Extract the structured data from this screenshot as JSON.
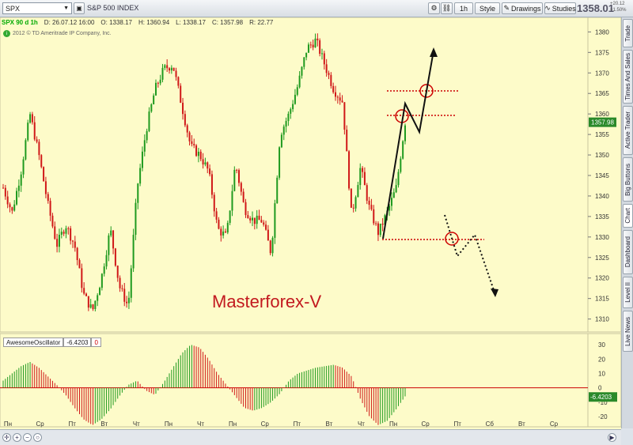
{
  "toolbar": {
    "symbol": "SPX",
    "symbol_name": "S&P 500 INDEX",
    "interval": "1h",
    "style_label": "Style",
    "drawings_label": "Drawings",
    "studies_label": "Studies",
    "last_price": "1358.01",
    "change_up": "+20.12",
    "change_pct": "+1.50%"
  },
  "infobar": {
    "symbol_tag": "SPX 90 d 1h",
    "date": "D: 26.07.12 16:00",
    "open": "O: 1338.17",
    "high": "H: 1360.94",
    "low": "L: 1338.17",
    "close": "C: 1357.98",
    "range": "R: 22.77"
  },
  "copyright": "2012 © TD Ameritrade IP Company, Inc.",
  "watermark": "Masterforex-V",
  "oscillator": {
    "name": "AwesomeOscillator",
    "value": "-6.4203",
    "zero": "0"
  },
  "price_axis": [
    "1380",
    "1375",
    "1370",
    "1365",
    "1360",
    "1355",
    "1350",
    "1345",
    "1340",
    "1335",
    "1330",
    "1325",
    "1320",
    "1315",
    "1310"
  ],
  "current_price_tag": "1357.98",
  "osc_axis": [
    "30",
    "20",
    "10",
    "0",
    "-10",
    "-20"
  ],
  "osc_value_tag": "-6.4203",
  "time_axis": [
    "Пн",
    "Ср",
    "Пт",
    "Вт",
    "Чт",
    "Пн",
    "Чт",
    "Пн",
    "Ср",
    "Пт",
    "Вт",
    "Чт",
    "Пн",
    "Ср",
    "Пт",
    "Сб",
    "Вт",
    "Ср"
  ],
  "sidebar_tabs": [
    "Trade",
    "Times And Sales",
    "Active Trader",
    "Big Buttons",
    "Chart",
    "Dashboard",
    "Level II",
    "Live News"
  ],
  "chart_data": {
    "type": "candlestick",
    "series": [
      {
        "name": "SPX 90 d 1h",
        "values": [
          1342,
          1336,
          1346,
          1360,
          1350,
          1338,
          1328,
          1333,
          1328,
          1316,
          1312,
          1320,
          1332,
          1318,
          1313,
          1342,
          1356,
          1366,
          1371,
          1372,
          1362,
          1352,
          1350,
          1346,
          1332,
          1330,
          1348,
          1337,
          1334,
          1334,
          1326,
          1355,
          1360,
          1367,
          1376,
          1378,
          1372,
          1366,
          1363,
          1335,
          1347,
          1337,
          1331,
          1336,
          1342,
          1358
        ]
      }
    ],
    "ylim": [
      1308,
      1382
    ],
    "yticks": [
      1380,
      1375,
      1370,
      1365,
      1360,
      1355,
      1350,
      1345,
      1340,
      1335,
      1330,
      1325,
      1320,
      1315,
      1310
    ],
    "last_close": 1357.98,
    "projection_levels": [
      1367,
      1361,
      1330
    ],
    "oscillator": {
      "name": "AwesomeOscillator",
      "type": "histogram",
      "ylim": [
        -25,
        35
      ],
      "last_value": -6.4203,
      "values": [
        5,
        10,
        15,
        18,
        14,
        8,
        2,
        -5,
        -14,
        -22,
        -26,
        -22,
        -15,
        -6,
        2,
        5,
        -2,
        -5,
        4,
        14,
        24,
        30,
        28,
        20,
        10,
        2,
        -6,
        -14,
        -16,
        -14,
        -10,
        -4,
        5,
        10,
        12,
        14,
        15,
        16,
        14,
        8,
        -8,
        -20,
        -26,
        -23,
        -15,
        -6
      ]
    }
  }
}
